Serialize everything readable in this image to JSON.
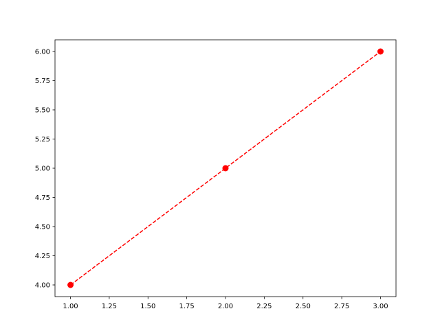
{
  "chart_data": {
    "type": "line",
    "title": "",
    "xlabel": "",
    "ylabel": "",
    "xlim": [
      0.9,
      3.1
    ],
    "ylim": [
      3.9,
      6.1
    ],
    "grid": false,
    "x": [
      1,
      2,
      3
    ],
    "series": [
      {
        "values": [
          4,
          5,
          6
        ],
        "color": "#ff0000",
        "linestyle": "dashed",
        "marker": "circle"
      }
    ],
    "xticks": [
      "1.00",
      "1.25",
      "1.50",
      "1.75",
      "2.00",
      "2.25",
      "2.50",
      "2.75",
      "3.00"
    ],
    "yticks": [
      "4.00",
      "4.25",
      "4.50",
      "4.75",
      "5.00",
      "5.25",
      "5.50",
      "5.75",
      "6.00"
    ]
  }
}
